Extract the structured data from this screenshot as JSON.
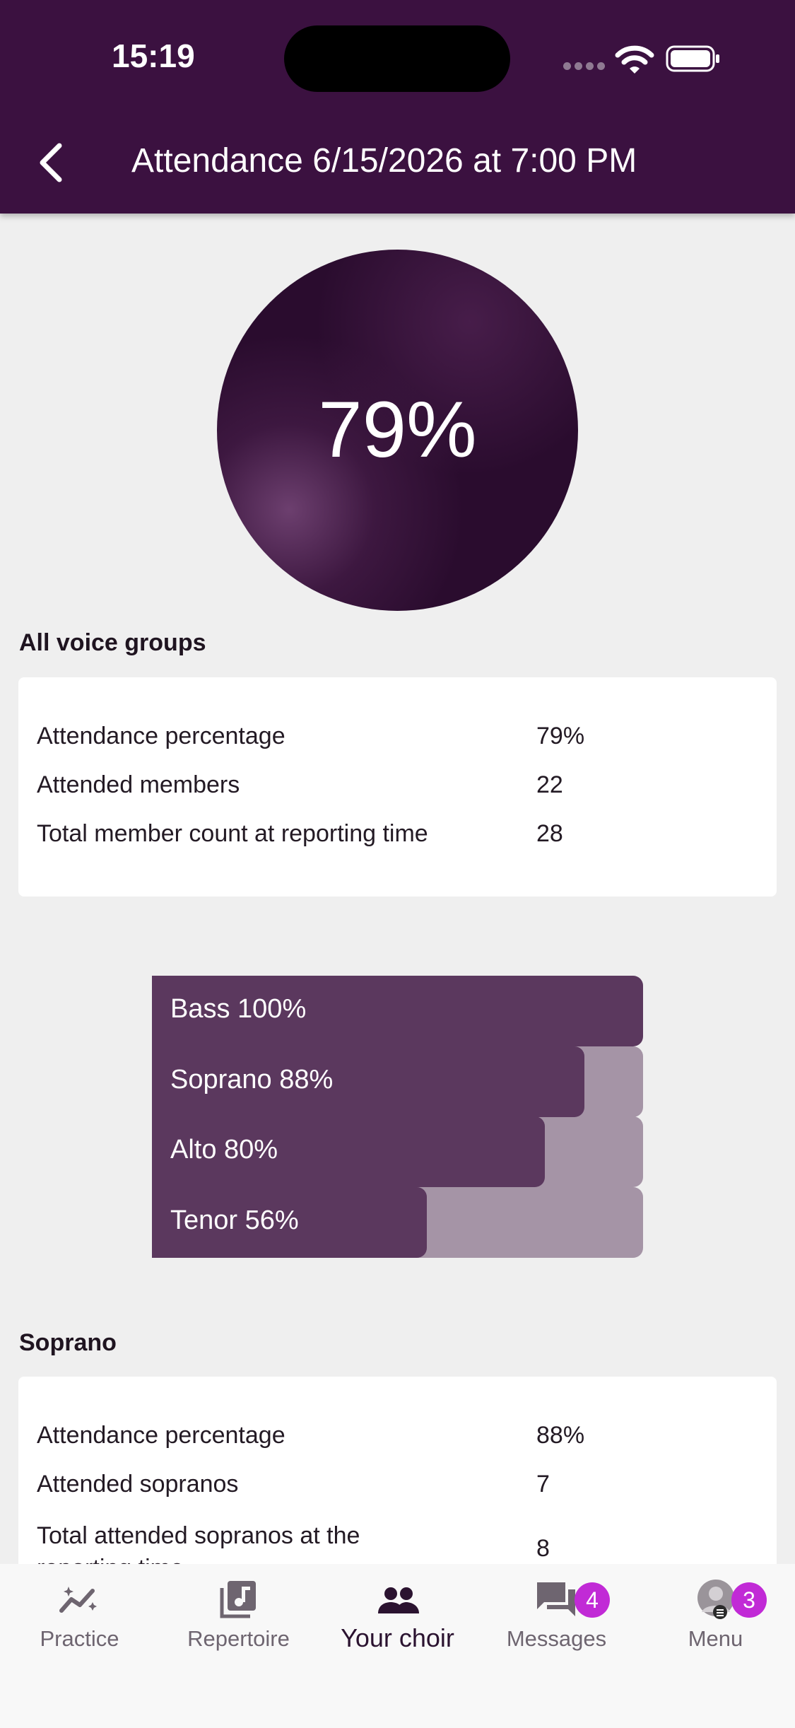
{
  "status_bar": {
    "time": "15:19"
  },
  "header": {
    "title": "Attendance 6/15/2026 at 7:00 PM"
  },
  "summary_circle": {
    "value": "79%"
  },
  "all_groups": {
    "title": "All voice groups",
    "rows": [
      {
        "label": "Attendance percentage",
        "value": "79%"
      },
      {
        "label": "Attended members",
        "value": "22"
      },
      {
        "label": "Total member count at reporting time",
        "value": "28"
      }
    ]
  },
  "chart_data": {
    "type": "bar",
    "categories": [
      "Bass",
      "Soprano",
      "Alto",
      "Tenor"
    ],
    "values": [
      100,
      88,
      80,
      56
    ],
    "labels": [
      "Bass 100%",
      "Soprano 88%",
      "Alto 80%",
      "Tenor 56%"
    ],
    "xlim": [
      0,
      100
    ],
    "colors": {
      "fill": "#5b385e",
      "track": "#a594a6"
    }
  },
  "soprano": {
    "title": "Soprano",
    "rows": [
      {
        "label": "Attendance percentage",
        "value": "88%"
      },
      {
        "label": "Attended sopranos",
        "value": "7"
      },
      {
        "label": "Total attended sopranos at the reporting time",
        "label_line1": "Total attended sopranos at the",
        "label_line2": "reporting time",
        "value": "8"
      }
    ]
  },
  "tabbar": {
    "tabs": [
      {
        "label": "Practice",
        "icon": "practice-sparkline-icon"
      },
      {
        "label": "Repertoire",
        "icon": "repertoire-music-icon"
      },
      {
        "label": "Your choir",
        "icon": "choir-people-icon",
        "active": true
      },
      {
        "label": "Messages",
        "icon": "messages-icon",
        "badge": "4"
      },
      {
        "label": "Menu",
        "icon": "avatar-menu-icon",
        "badge": "3"
      }
    ]
  },
  "colors": {
    "header": "#3b1140",
    "badge": "#c12ad6",
    "background": "#efefef"
  }
}
